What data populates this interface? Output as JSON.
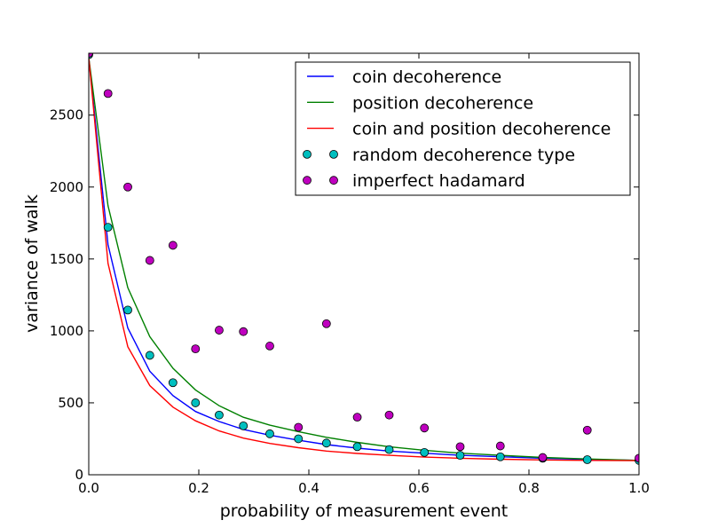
{
  "chart_data": {
    "type": "line",
    "title": "",
    "xlabel": "probability of measurement event",
    "ylabel": "variance of walk",
    "xlim": [
      0.0,
      1.0
    ],
    "ylim": [
      0,
      2930
    ],
    "x_ticks": [
      0.0,
      0.2,
      0.4,
      0.6,
      0.8,
      1.0
    ],
    "x_tick_labels": [
      "0.0",
      "0.2",
      "0.4",
      "0.6",
      "0.8",
      "1.0"
    ],
    "y_ticks": [
      0,
      500,
      1000,
      1500,
      2000,
      2500
    ],
    "y_tick_labels": [
      "0",
      "500",
      "1000",
      "1500",
      "2000",
      "2500"
    ],
    "grid": false,
    "legend_position": "top-right",
    "series": [
      {
        "name": "coin decoherence",
        "kind": "line",
        "color": "#0000ff",
        "x": [
          0.0,
          0.035,
          0.071,
          0.111,
          0.153,
          0.194,
          0.237,
          0.281,
          0.329,
          0.381,
          0.432,
          0.488,
          0.546,
          0.61,
          0.675,
          0.748,
          0.825,
          0.906,
          1.0
        ],
        "y": [
          2900,
          1600,
          1020,
          720,
          550,
          440,
          370,
          315,
          275,
          240,
          210,
          185,
          165,
          150,
          135,
          125,
          115,
          107,
          100
        ]
      },
      {
        "name": "position decoherence",
        "kind": "line",
        "color": "#008000",
        "x": [
          0.0,
          0.035,
          0.071,
          0.111,
          0.153,
          0.194,
          0.237,
          0.281,
          0.329,
          0.381,
          0.432,
          0.488,
          0.546,
          0.61,
          0.675,
          0.748,
          0.825,
          0.906,
          1.0
        ],
        "y": [
          2900,
          1870,
          1300,
          960,
          740,
          590,
          480,
          400,
          345,
          300,
          260,
          225,
          195,
          170,
          150,
          135,
          120,
          110,
          100
        ]
      },
      {
        "name": "coin and position decoherence",
        "kind": "line",
        "color": "#ff0000",
        "x": [
          0.0,
          0.035,
          0.071,
          0.111,
          0.153,
          0.194,
          0.237,
          0.281,
          0.329,
          0.381,
          0.432,
          0.488,
          0.546,
          0.61,
          0.675,
          0.748,
          0.825,
          0.906,
          1.0
        ],
        "y": [
          2900,
          1470,
          890,
          620,
          470,
          375,
          305,
          255,
          218,
          188,
          165,
          148,
          135,
          123,
          115,
          108,
          103,
          100,
          98
        ]
      },
      {
        "name": "random decoherence type",
        "kind": "scatter",
        "color": "#00bfbf",
        "x": [
          0.0,
          0.035,
          0.071,
          0.111,
          0.153,
          0.194,
          0.237,
          0.281,
          0.329,
          0.381,
          0.432,
          0.488,
          0.546,
          0.61,
          0.675,
          0.748,
          0.825,
          0.906,
          1.0
        ],
        "y": [
          2920,
          1720,
          1145,
          830,
          640,
          500,
          415,
          340,
          285,
          250,
          220,
          195,
          175,
          155,
          135,
          125,
          115,
          105,
          100
        ]
      },
      {
        "name": "imperfect hadamard",
        "kind": "scatter",
        "color": "#bf00bf",
        "x": [
          0.0,
          0.035,
          0.071,
          0.111,
          0.153,
          0.194,
          0.237,
          0.281,
          0.329,
          0.381,
          0.432,
          0.488,
          0.546,
          0.61,
          0.675,
          0.748,
          0.825,
          0.906,
          1.0
        ],
        "y": [
          2930,
          2650,
          2000,
          1490,
          1595,
          875,
          1005,
          995,
          895,
          330,
          1050,
          400,
          415,
          325,
          195,
          200,
          120,
          310,
          115
        ]
      }
    ]
  }
}
